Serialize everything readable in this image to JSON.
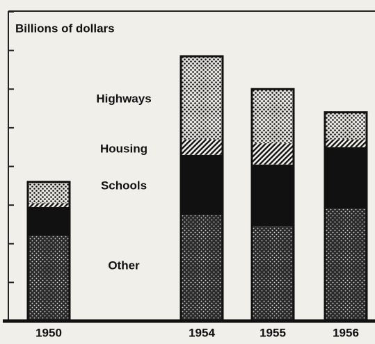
{
  "chart_data": {
    "type": "bar",
    "stacked": true,
    "title": "Billions of dollars",
    "categories": [
      "1950",
      "1954",
      "1955",
      "1956"
    ],
    "series": [
      {
        "name": "Other",
        "color": "#2a2a2a",
        "values": [
          2.2,
          2.75,
          2.45,
          2.9
        ]
      },
      {
        "name": "Schools",
        "color": "#111111",
        "values": [
          0.75,
          1.55,
          1.6,
          1.6
        ]
      },
      {
        "name": "Housing",
        "color": "#f4f2ec",
        "values": [
          0.1,
          0.4,
          0.55,
          0.2
        ]
      },
      {
        "name": "Highways",
        "color": "#e6e4de",
        "values": [
          0.55,
          2.15,
          1.4,
          0.7
        ]
      }
    ],
    "ylim": [
      0,
      8
    ],
    "yticks": [
      0,
      1,
      2,
      3,
      4,
      5,
      6,
      7,
      8
    ]
  }
}
